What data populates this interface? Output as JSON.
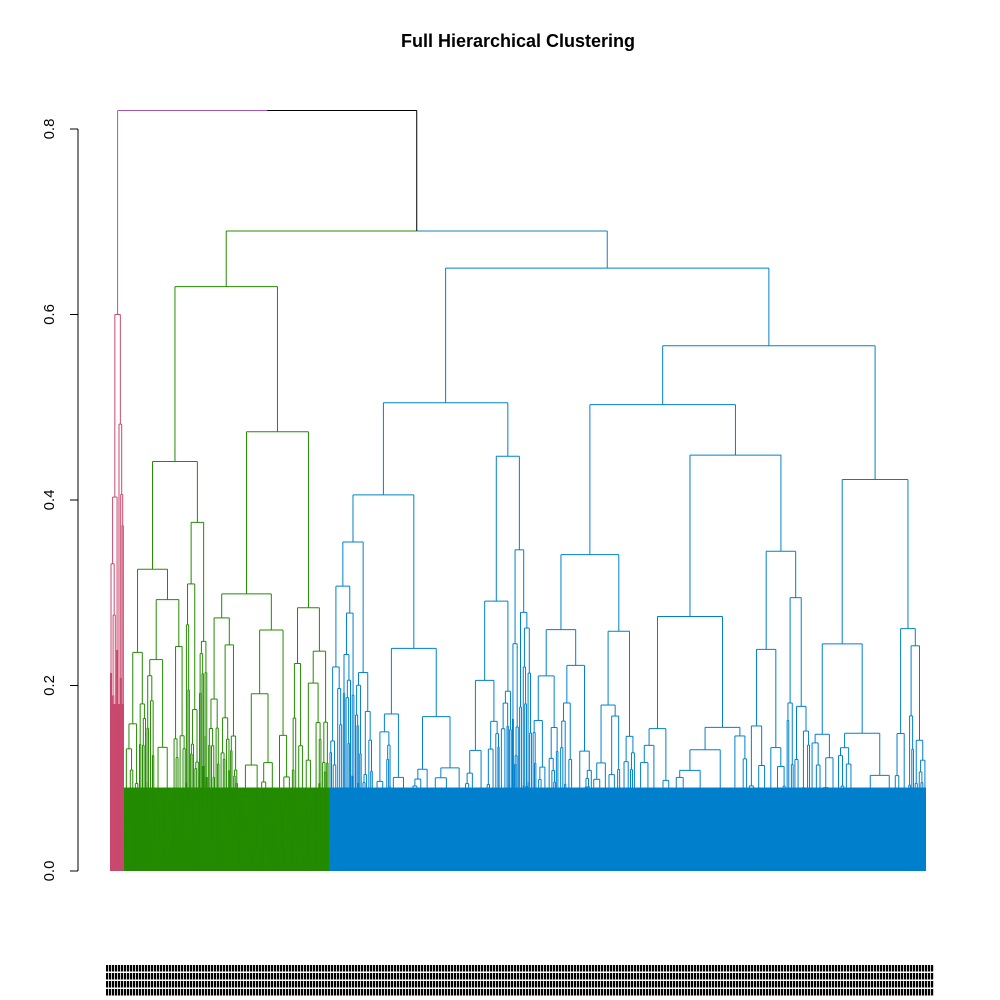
{
  "chart_data": {
    "type": "dendrogram",
    "title": "Full Hierarchical Clustering",
    "ylabel": "",
    "xlabel": "",
    "ylim": [
      0,
      0.8
    ],
    "y_ticks": [
      "0.0",
      "0.2",
      "0.4",
      "0.6",
      "0.8"
    ],
    "root_height": 0.82,
    "clusters": [
      {
        "color": "#c9486e",
        "leaf_count": 14,
        "merge_height": 0.6
      },
      {
        "color": "#238b00",
        "leaf_count": 205,
        "merge_height": 0.63
      },
      {
        "color": "#0080cc",
        "leaf_count": 597,
        "merge_height": 0.65
      }
    ],
    "top_merges": [
      {
        "children": [
          "pink",
          "root_rest"
        ],
        "height": 0.82,
        "color_left": "#a855b8",
        "color_right": "#000000"
      },
      {
        "children": [
          "green",
          "blue"
        ],
        "height": 0.69,
        "color_left": "#238b00",
        "color_right": "#1a7dc0"
      }
    ],
    "leaf_labels_note": "dense overlapping leaf labels"
  }
}
